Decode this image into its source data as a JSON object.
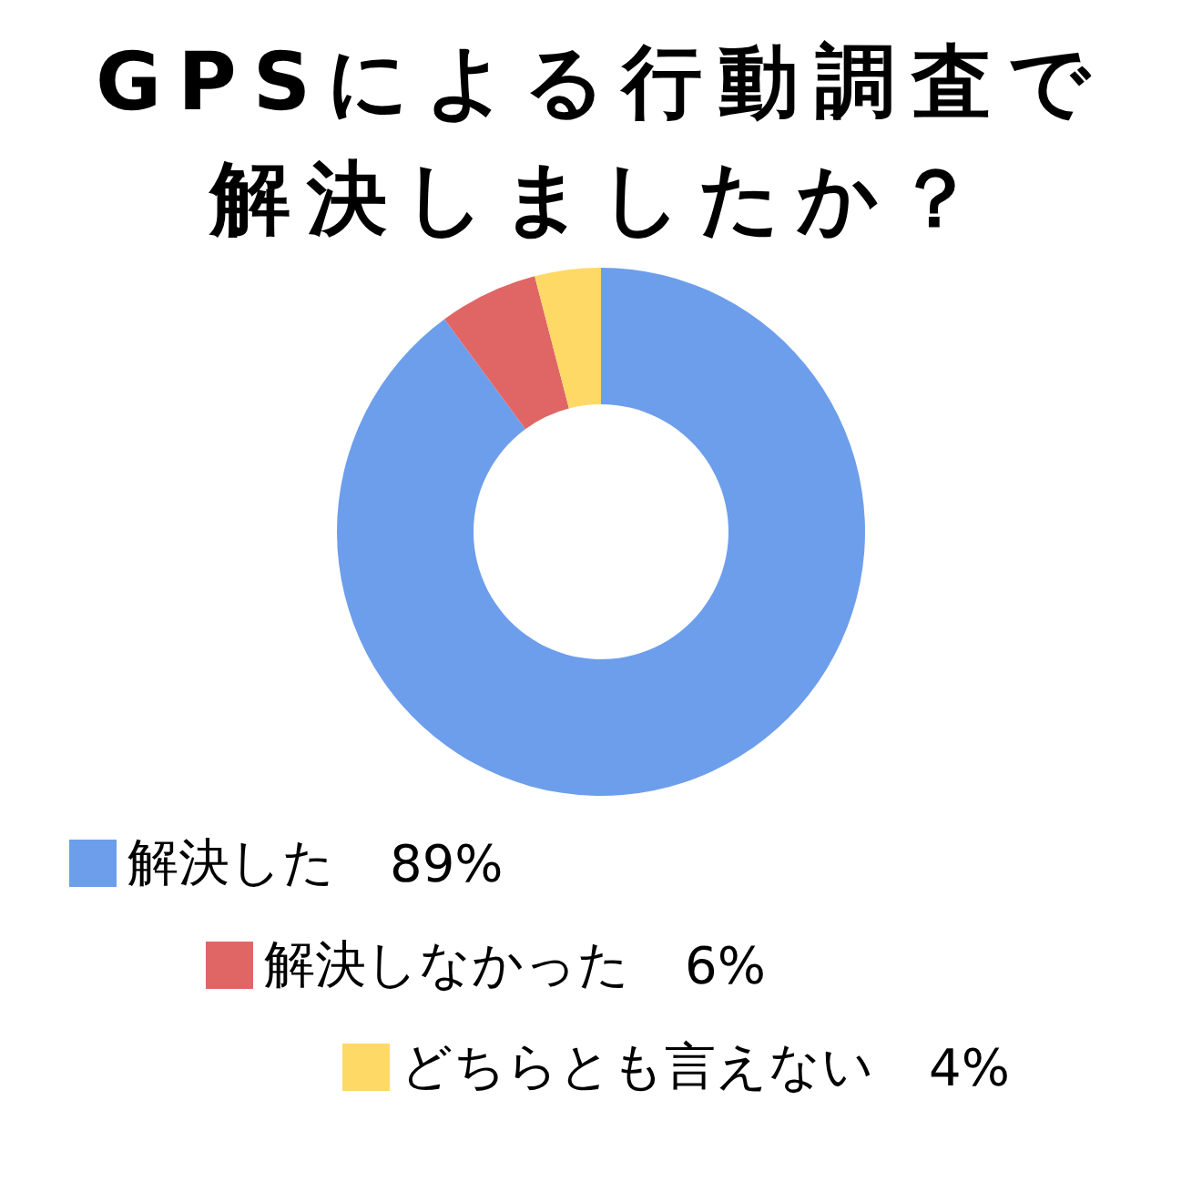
{
  "chart_data": {
    "type": "donut",
    "title": "GPSによる行動調査で解決しましたか？",
    "categories": [
      "解決した",
      "解決しなかった",
      "どちらとも言えない"
    ],
    "values": [
      89,
      6,
      4
    ],
    "value_labels": [
      "89%",
      "6%",
      "4%"
    ],
    "colors": [
      "#6d9eeb",
      "#e06666",
      "#ffd966"
    ],
    "legend": "bottom left"
  }
}
